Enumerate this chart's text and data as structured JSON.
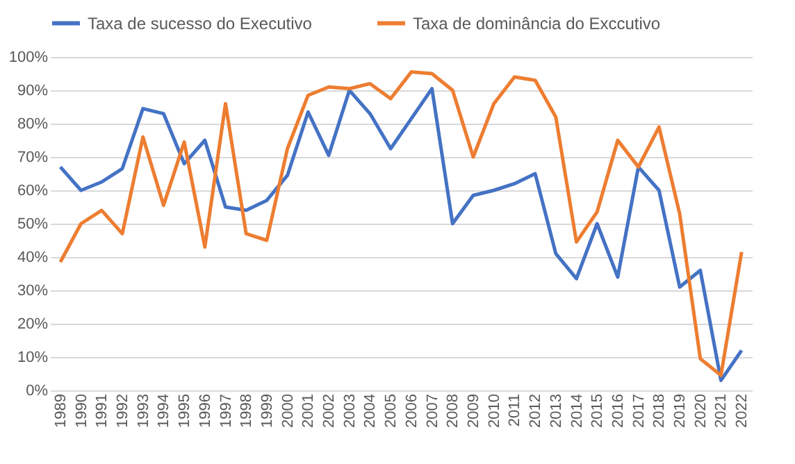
{
  "chart_data": {
    "type": "line",
    "categories": [
      "1989",
      "1990",
      "1991",
      "1992",
      "1993",
      "1994",
      "1995",
      "1996",
      "1997",
      "1998",
      "1999",
      "2000",
      "2001",
      "2002",
      "2003",
      "2004",
      "2005",
      "2006",
      "2007",
      "2008",
      "2009",
      "2010",
      "2011",
      "2012",
      "2013",
      "2014",
      "2015",
      "2016",
      "2017",
      "2018",
      "2019",
      "2020",
      "2021",
      "2022"
    ],
    "series": [
      {
        "name": "Taxa de sucesso do Executivo",
        "color": "#4472c4",
        "values": [
          67,
          60,
          62.5,
          66.5,
          84.5,
          83,
          68,
          75,
          55,
          54,
          57,
          64.5,
          83.5,
          70.5,
          90,
          83,
          72.5,
          81.5,
          90.5,
          50,
          58.5,
          60,
          62,
          65,
          41,
          33.5,
          50,
          34,
          67,
          60,
          31,
          36,
          3,
          12
        ]
      },
      {
        "name": "Taxa de dominância do Exccutivo",
        "color": "#ed7d31",
        "values": [
          38.5,
          50,
          54,
          47,
          76,
          55.5,
          74.5,
          43,
          86,
          47,
          45,
          72.5,
          88.5,
          91,
          90.5,
          92,
          87.5,
          95.5,
          95,
          90,
          70,
          86,
          94,
          93,
          82,
          44.5,
          53.5,
          75,
          67,
          79,
          53,
          9.5,
          4.5,
          41.5
        ]
      }
    ],
    "ylim": [
      0,
      100
    ],
    "yticks": [
      {
        "value": 0,
        "label": "0%"
      },
      {
        "value": 10,
        "label": "10%"
      },
      {
        "value": 20,
        "label": "20%"
      },
      {
        "value": 30,
        "label": "30%"
      },
      {
        "value": 40,
        "label": "40%"
      },
      {
        "value": 50,
        "label": "50%"
      },
      {
        "value": 60,
        "label": "60%"
      },
      {
        "value": 70,
        "label": "70%"
      },
      {
        "value": 80,
        "label": "80%"
      },
      {
        "value": 90,
        "label": "90%"
      },
      {
        "value": 100,
        "label": "100%"
      }
    ],
    "grid": "y",
    "legend": "top",
    "marker": "none",
    "line_style": "solid"
  }
}
